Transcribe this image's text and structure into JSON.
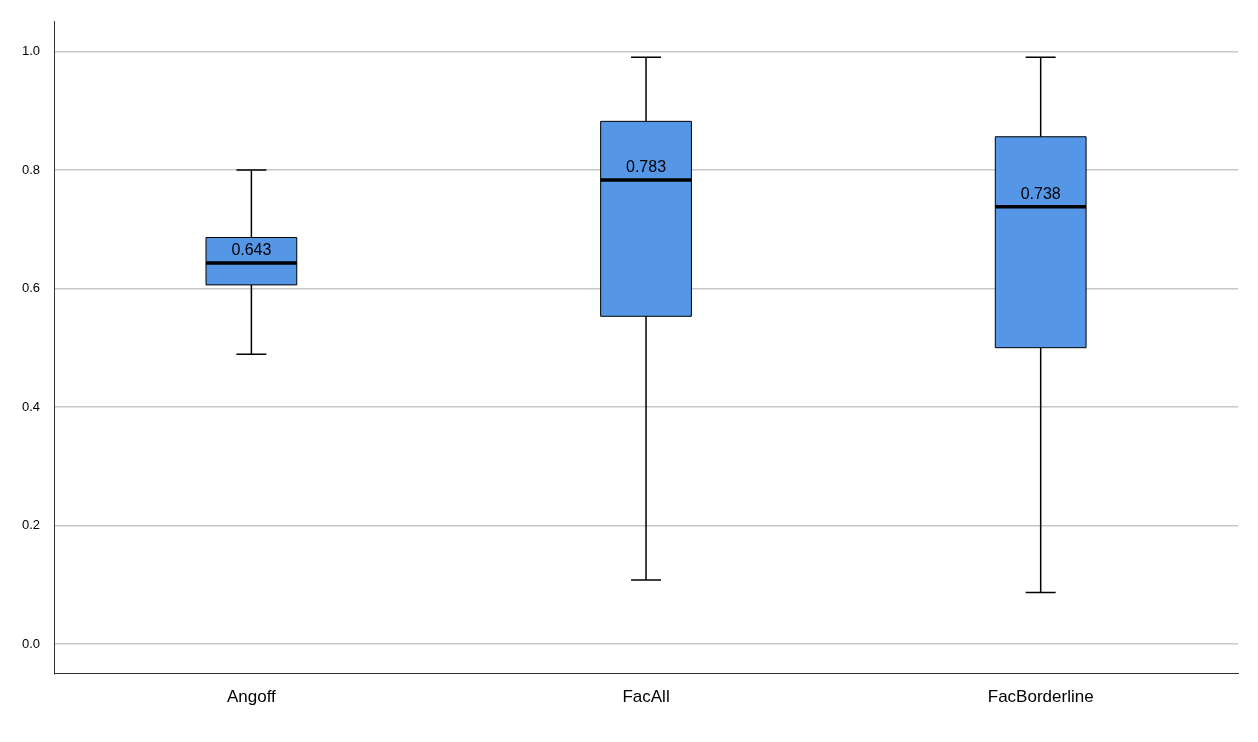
{
  "chart_data": {
    "type": "box",
    "categories": [
      "Angoff",
      "FacAll",
      "FacBorderline"
    ],
    "boxes": [
      {
        "low": 0.489,
        "q1": 0.606,
        "median": 0.643,
        "q3": 0.686,
        "high": 0.8
      },
      {
        "low": 0.108,
        "q1": 0.553,
        "median": 0.783,
        "q3": 0.882,
        "high": 0.99
      },
      {
        "low": 0.087,
        "q1": 0.5,
        "median": 0.738,
        "q3": 0.856,
        "high": 0.99
      }
    ],
    "color": "#5596e6",
    "ylim": [
      -0.05,
      1.05
    ],
    "yticks": [
      {
        "value": 0,
        "label": "0.0"
      },
      0.2,
      0.4,
      0.6,
      0.8,
      {
        "value": 1,
        "label": "1.0"
      }
    ],
    "grid": "y",
    "annotations": [
      {
        "text": "0.643",
        "x": "Angoff",
        "y": 0.643
      },
      {
        "text": "0.783",
        "x": "FacAll",
        "y": 0.783
      },
      {
        "text": "0.738",
        "x": "FacBorderline",
        "y": 0.738
      }
    ]
  }
}
